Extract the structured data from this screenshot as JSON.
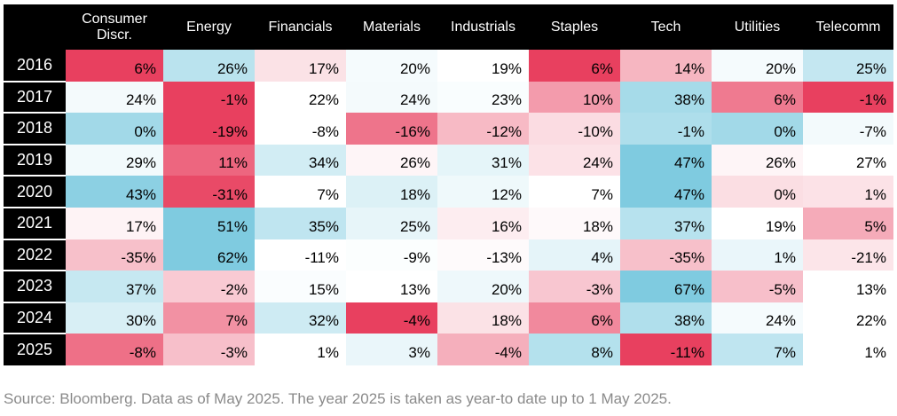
{
  "chart_data": {
    "type": "heatmap",
    "title": "",
    "columns": [
      "Consumer\nDiscr.",
      "Energy",
      "Financials",
      "Materials",
      "Industrials",
      "Staples",
      "Tech",
      "Utilities",
      "Telecomm"
    ],
    "rows": [
      "2016",
      "2017",
      "2018",
      "2019",
      "2020",
      "2021",
      "2022",
      "2023",
      "2024",
      "2025"
    ],
    "values": [
      [
        6,
        26,
        17,
        20,
        19,
        6,
        14,
        20,
        25
      ],
      [
        24,
        -1,
        22,
        24,
        23,
        10,
        38,
        6,
        -1
      ],
      [
        0,
        -19,
        -8,
        -16,
        -12,
        -10,
        -1,
        0,
        -7
      ],
      [
        29,
        11,
        34,
        26,
        31,
        24,
        47,
        26,
        27
      ],
      [
        43,
        -31,
        7,
        18,
        12,
        7,
        47,
        0,
        1
      ],
      [
        17,
        51,
        35,
        25,
        16,
        18,
        37,
        19,
        5
      ],
      [
        -35,
        62,
        -11,
        -9,
        -13,
        4,
        -35,
        1,
        -21
      ],
      [
        37,
        -2,
        15,
        13,
        20,
        -3,
        67,
        -5,
        13
      ],
      [
        30,
        7,
        32,
        -4,
        18,
        6,
        38,
        24,
        22
      ],
      [
        -8,
        -3,
        1,
        3,
        -4,
        8,
        -11,
        7,
        1
      ]
    ],
    "value_suffix": "%",
    "colors": {
      "positive": "#7fcbe0",
      "negative": "#e8405f",
      "neutral": "#ffffff"
    }
  },
  "source_note": "Source: Bloomberg. Data as of May 2025. The year 2025 is taken as year-to date up to 1 May 2025."
}
